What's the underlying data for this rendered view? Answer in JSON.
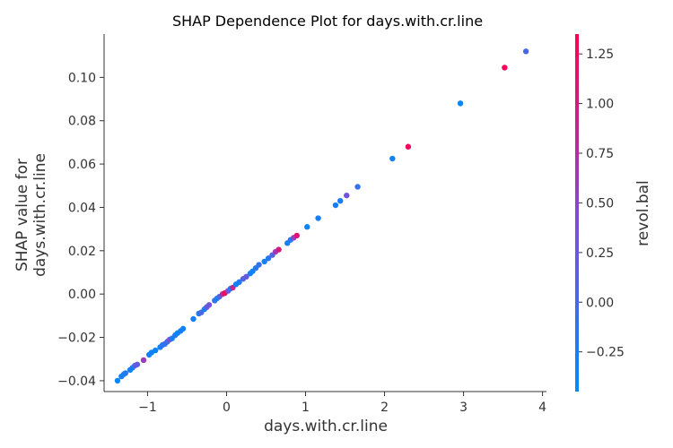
{
  "chart_data": {
    "type": "scatter",
    "title": "SHAP Dependence Plot for days.with.cr.line",
    "xlabel": "days.with.cr.line",
    "ylabel_lines": [
      "SHAP value for",
      "days.with.cr.line"
    ],
    "colorbar_label": "revol.bal",
    "xlim": [
      -1.55,
      4.05
    ],
    "ylim": [
      -0.045,
      0.12
    ],
    "xticks": [
      -1,
      0,
      1,
      2,
      3,
      4
    ],
    "xtick_labels": [
      "−1",
      "0",
      "1",
      "2",
      "3",
      "4"
    ],
    "yticks": [
      -0.04,
      -0.02,
      0.0,
      0.02,
      0.04,
      0.06,
      0.08,
      0.1
    ],
    "ytick_labels": [
      "−0.04",
      "−0.02",
      "0.00",
      "0.02",
      "0.04",
      "0.06",
      "0.08",
      "0.10"
    ],
    "colorbar_range": [
      -0.45,
      1.35
    ],
    "colorbar_ticks": [
      -0.25,
      0.0,
      0.25,
      0.5,
      0.75,
      1.0,
      1.25
    ],
    "colorbar_tick_labels": [
      "−0.25",
      "0.00",
      "0.25",
      "0.50",
      "0.75",
      "1.00",
      "1.25"
    ],
    "colormap": [
      "#008afb",
      "#ff0051"
    ],
    "grid": false,
    "points": [
      {
        "x": -1.38,
        "y": -0.04,
        "c": -0.4
      },
      {
        "x": -1.33,
        "y": -0.038,
        "c": -0.3
      },
      {
        "x": -1.3,
        "y": -0.037,
        "c": -0.35
      },
      {
        "x": -1.28,
        "y": -0.0365,
        "c": -0.2
      },
      {
        "x": -1.22,
        "y": -0.035,
        "c": -0.4
      },
      {
        "x": -1.19,
        "y": -0.034,
        "c": -0.25
      },
      {
        "x": -1.16,
        "y": -0.033,
        "c": 0.1
      },
      {
        "x": -1.13,
        "y": -0.0325,
        "c": 0.2
      },
      {
        "x": -1.05,
        "y": -0.0305,
        "c": 0.6
      },
      {
        "x": -0.98,
        "y": -0.028,
        "c": -0.3
      },
      {
        "x": -0.95,
        "y": -0.027,
        "c": -0.35
      },
      {
        "x": -0.9,
        "y": -0.026,
        "c": -0.4
      },
      {
        "x": -0.84,
        "y": -0.0245,
        "c": -0.3
      },
      {
        "x": -0.81,
        "y": -0.0235,
        "c": -0.2
      },
      {
        "x": -0.78,
        "y": -0.023,
        "c": -0.1
      },
      {
        "x": -0.75,
        "y": -0.022,
        "c": 0.0
      },
      {
        "x": -0.72,
        "y": -0.021,
        "c": 0.4
      },
      {
        "x": -0.69,
        "y": -0.0205,
        "c": -0.3
      },
      {
        "x": -0.65,
        "y": -0.019,
        "c": -0.2
      },
      {
        "x": -0.62,
        "y": -0.018,
        "c": -0.4
      },
      {
        "x": -0.58,
        "y": -0.017,
        "c": -0.3
      },
      {
        "x": -0.55,
        "y": -0.016,
        "c": -0.35
      },
      {
        "x": -0.42,
        "y": -0.0115,
        "c": -0.3
      },
      {
        "x": -0.35,
        "y": -0.009,
        "c": -0.2
      },
      {
        "x": -0.32,
        "y": -0.0085,
        "c": 0.0
      },
      {
        "x": -0.28,
        "y": -0.007,
        "c": -0.3
      },
      {
        "x": -0.25,
        "y": -0.006,
        "c": 0.2
      },
      {
        "x": -0.22,
        "y": -0.005,
        "c": 0.3
      },
      {
        "x": -0.15,
        "y": -0.003,
        "c": -0.1
      },
      {
        "x": -0.12,
        "y": -0.002,
        "c": -0.3
      },
      {
        "x": -0.09,
        "y": -0.0012,
        "c": 0.1
      },
      {
        "x": -0.05,
        "y": 0.0,
        "c": 0.8
      },
      {
        "x": -0.02,
        "y": 0.0005,
        "c": 1.2
      },
      {
        "x": 0.02,
        "y": 0.0015,
        "c": 0.3
      },
      {
        "x": 0.05,
        "y": 0.0025,
        "c": -0.2
      },
      {
        "x": 0.08,
        "y": 0.003,
        "c": 0.9
      },
      {
        "x": 0.12,
        "y": 0.0045,
        "c": -0.3
      },
      {
        "x": 0.16,
        "y": 0.0055,
        "c": -0.25
      },
      {
        "x": 0.21,
        "y": 0.007,
        "c": 0.1
      },
      {
        "x": 0.25,
        "y": 0.008,
        "c": 0.2
      },
      {
        "x": 0.3,
        "y": 0.0095,
        "c": -0.3
      },
      {
        "x": 0.33,
        "y": 0.0105,
        "c": -0.35
      },
      {
        "x": 0.37,
        "y": 0.012,
        "c": -0.2
      },
      {
        "x": 0.41,
        "y": 0.0135,
        "c": -0.1
      },
      {
        "x": 0.48,
        "y": 0.015,
        "c": -0.3
      },
      {
        "x": 0.53,
        "y": 0.0165,
        "c": -0.2
      },
      {
        "x": 0.58,
        "y": 0.018,
        "c": 0.1
      },
      {
        "x": 0.62,
        "y": 0.0195,
        "c": 0.6
      },
      {
        "x": 0.66,
        "y": 0.0205,
        "c": 1.0
      },
      {
        "x": 0.77,
        "y": 0.0235,
        "c": -0.3
      },
      {
        "x": 0.81,
        "y": 0.025,
        "c": -0.2
      },
      {
        "x": 0.85,
        "y": 0.026,
        "c": 0.5
      },
      {
        "x": 0.89,
        "y": 0.027,
        "c": 1.1
      },
      {
        "x": 1.02,
        "y": 0.031,
        "c": -0.35
      },
      {
        "x": 1.16,
        "y": 0.035,
        "c": -0.3
      },
      {
        "x": 1.38,
        "y": 0.041,
        "c": -0.3
      },
      {
        "x": 1.44,
        "y": 0.043,
        "c": -0.25
      },
      {
        "x": 1.52,
        "y": 0.0455,
        "c": 0.3
      },
      {
        "x": 1.66,
        "y": 0.0495,
        "c": -0.1
      },
      {
        "x": 2.1,
        "y": 0.0625,
        "c": -0.35
      },
      {
        "x": 2.3,
        "y": 0.068,
        "c": 1.25
      },
      {
        "x": 2.96,
        "y": 0.088,
        "c": -0.4
      },
      {
        "x": 3.52,
        "y": 0.1045,
        "c": 1.3
      },
      {
        "x": 3.79,
        "y": 0.112,
        "c": 0.05
      }
    ]
  }
}
